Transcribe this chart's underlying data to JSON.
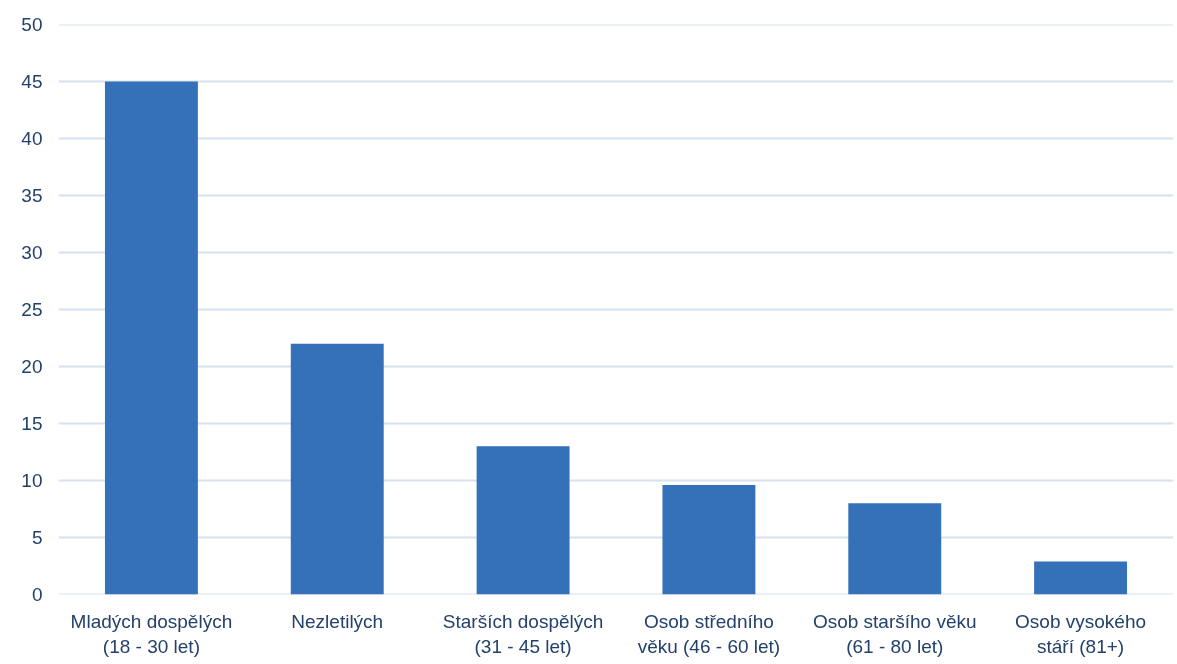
{
  "chart_data": {
    "type": "bar",
    "categories": [
      "Mladých dospělých (18 - 30 let)",
      "Nezletilých",
      "Starších dospělých (31 - 45 let)",
      "Osob středního věku (46 - 60 let)",
      "Osob staršího věku (61 - 80 let)",
      "Osob vysokého stáří (81+)"
    ],
    "values": [
      45,
      22,
      13,
      9.6,
      8,
      2.9
    ],
    "color": "#3571b8",
    "ylim": [
      0,
      50
    ],
    "yticks": [
      0,
      5,
      10,
      15,
      20,
      25,
      30,
      35,
      40,
      45,
      50
    ],
    "grid": "y"
  }
}
